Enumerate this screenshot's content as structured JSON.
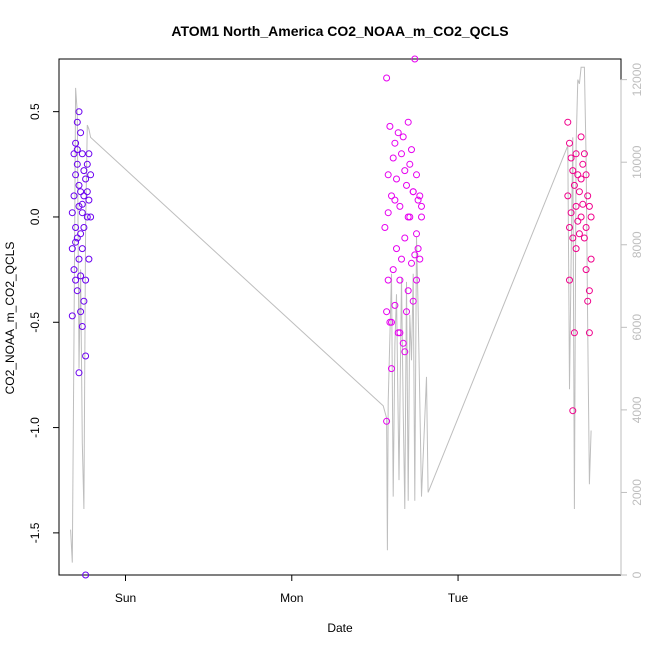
{
  "chart_data": {
    "type": "scatter",
    "title": "ATOM1 North_America CO2_NOAA_m_CO2_QCLS",
    "xlabel": "Date",
    "ylabel": "CO2_NOAA_m_CO2_QCLS",
    "x_ticks": [
      "Sun",
      "Mon",
      "Tue"
    ],
    "x_tick_days": [
      1,
      2,
      3
    ],
    "xlim_days": [
      0.6,
      3.98
    ],
    "y_ticks": [
      -1.5,
      -1.0,
      -0.5,
      0.0,
      0.5
    ],
    "y_tick_labels": [
      "-1.5",
      "-1.0",
      "-0.5",
      "0.0",
      "0.5"
    ],
    "ylim": [
      -1.7,
      0.75
    ],
    "y2_ticks": [
      0,
      2000,
      4000,
      6000,
      8000,
      10000,
      12000
    ],
    "y2_tick_labels": [
      "0",
      "2000",
      "4000",
      "6000",
      "8000",
      "10000",
      "12000"
    ],
    "y2lim": [
      0,
      12500
    ],
    "grid": false,
    "colors": {
      "flight1": "#6b00f0",
      "flight2": "#e600f0",
      "flight3": "#f0008c",
      "altitude_line": "#bebebe"
    },
    "altitude_line_points": [
      [
        0.67,
        1100
      ],
      [
        0.68,
        300
      ],
      [
        0.69,
        5800
      ],
      [
        0.7,
        11800
      ],
      [
        0.71,
        11200
      ],
      [
        0.72,
        5000
      ],
      [
        0.73,
        7400
      ],
      [
        0.74,
        3200
      ],
      [
        0.75,
        1600
      ],
      [
        0.76,
        8400
      ],
      [
        0.77,
        10900
      ],
      [
        0.78,
        10800
      ],
      [
        0.79,
        10600
      ],
      [
        2.55,
        4100
      ],
      [
        2.57,
        3800
      ],
      [
        2.575,
        600
      ],
      [
        2.58,
        4200
      ],
      [
        2.6,
        7300
      ],
      [
        2.61,
        1900
      ],
      [
        2.62,
        5600
      ],
      [
        2.63,
        6800
      ],
      [
        2.645,
        2300
      ],
      [
        2.66,
        7200
      ],
      [
        2.67,
        4000
      ],
      [
        2.68,
        1600
      ],
      [
        2.69,
        7100
      ],
      [
        2.7,
        1800
      ],
      [
        2.71,
        6300
      ],
      [
        2.72,
        5200
      ],
      [
        2.73,
        7300
      ],
      [
        2.74,
        1800
      ],
      [
        2.75,
        8200
      ],
      [
        2.76,
        6500
      ],
      [
        2.78,
        1900
      ],
      [
        2.81,
        4800
      ],
      [
        2.82,
        2000
      ],
      [
        3.66,
        10400
      ],
      [
        3.67,
        4500
      ],
      [
        3.68,
        7600
      ],
      [
        3.69,
        10600
      ],
      [
        3.7,
        1600
      ],
      [
        3.71,
        10400
      ],
      [
        3.72,
        12000
      ],
      [
        3.73,
        11900
      ],
      [
        3.74,
        12300
      ],
      [
        3.75,
        12300
      ],
      [
        3.76,
        12300
      ],
      [
        3.77,
        10100
      ],
      [
        3.78,
        6000
      ],
      [
        3.79,
        2200
      ],
      [
        3.8,
        3500
      ]
    ],
    "series": [
      {
        "name": "",
        "x": [
          0.68,
          0.68,
          0.69,
          0.69,
          0.69,
          0.7,
          0.7,
          0.7,
          0.7,
          0.71,
          0.71,
          0.71,
          0.71,
          0.72,
          0.72,
          0.72,
          0.72,
          0.73,
          0.73,
          0.73,
          0.73,
          0.74,
          0.74,
          0.74,
          0.74,
          0.75,
          0.75,
          0.75,
          0.75,
          0.76,
          0.76,
          0.76,
          0.77,
          0.77,
          0.77,
          0.78,
          0.78,
          0.78,
          0.79,
          0.79,
          0.68,
          0.7,
          0.72,
          0.74,
          0.76,
          0.71,
          0.73
        ],
        "y": [
          -0.15,
          0.02,
          0.1,
          -0.25,
          0.3,
          0.2,
          -0.3,
          0.35,
          -0.05,
          0.45,
          -0.1,
          0.25,
          -0.35,
          0.5,
          0.05,
          -0.2,
          0.15,
          0.4,
          -0.45,
          0.12,
          -0.28,
          0.3,
          -0.52,
          0.06,
          -0.15,
          0.1,
          -0.4,
          0.22,
          -0.05,
          -0.66,
          0.18,
          -0.3,
          0.25,
          0.0,
          0.12,
          0.3,
          -0.2,
          0.08,
          0.2,
          0.0,
          -0.47,
          -0.12,
          -0.74,
          0.02,
          -1.7,
          0.32,
          -0.08
        ]
      },
      {
        "name": "",
        "x": [
          2.56,
          2.57,
          2.57,
          2.58,
          2.58,
          2.59,
          2.59,
          2.6,
          2.6,
          2.61,
          2.61,
          2.62,
          2.62,
          2.63,
          2.63,
          2.64,
          2.64,
          2.65,
          2.65,
          2.66,
          2.66,
          2.67,
          2.67,
          2.68,
          2.68,
          2.69,
          2.69,
          2.7,
          2.7,
          2.71,
          2.71,
          2.72,
          2.72,
          2.73,
          2.73,
          2.74,
          2.74,
          2.75,
          2.75,
          2.76,
          2.76,
          2.77,
          2.77,
          2.78,
          2.78,
          2.57,
          2.58,
          2.6,
          2.62,
          2.65,
          2.68,
          2.7,
          2.73,
          2.75
        ],
        "y": [
          -0.05,
          0.66,
          -0.97,
          0.2,
          -0.3,
          0.43,
          -0.5,
          0.1,
          -0.72,
          0.28,
          -0.25,
          0.35,
          -0.42,
          0.18,
          -0.15,
          0.4,
          -0.55,
          0.05,
          -0.3,
          0.3,
          -0.2,
          0.38,
          -0.6,
          0.22,
          -0.1,
          0.15,
          -0.45,
          0.45,
          -0.35,
          0.25,
          0.0,
          0.32,
          -0.22,
          0.12,
          -0.4,
          0.75,
          -0.18,
          0.2,
          -0.3,
          0.08,
          -0.15,
          0.1,
          -0.2,
          0.05,
          0.0,
          -0.45,
          0.02,
          -0.5,
          0.08,
          -0.55,
          -0.64,
          0.0,
          0.12,
          -0.08
        ]
      },
      {
        "name": "",
        "x": [
          3.66,
          3.66,
          3.67,
          3.67,
          3.68,
          3.68,
          3.69,
          3.69,
          3.7,
          3.7,
          3.71,
          3.71,
          3.72,
          3.72,
          3.73,
          3.73,
          3.74,
          3.74,
          3.75,
          3.75,
          3.76,
          3.76,
          3.77,
          3.77,
          3.78,
          3.78,
          3.79,
          3.79,
          3.8,
          3.8,
          3.67,
          3.69,
          3.71,
          3.74,
          3.77,
          3.79
        ],
        "y": [
          0.45,
          0.1,
          0.35,
          -0.05,
          0.28,
          0.02,
          0.22,
          -0.1,
          -0.55,
          0.15,
          0.3,
          0.05,
          0.2,
          -0.02,
          0.12,
          -0.08,
          0.38,
          0.0,
          0.25,
          0.06,
          0.3,
          -0.1,
          0.2,
          -0.25,
          0.1,
          -0.4,
          0.05,
          -0.55,
          -0.2,
          0.0,
          -0.3,
          -0.92,
          -0.15,
          0.18,
          -0.05,
          -0.35
        ]
      }
    ]
  }
}
